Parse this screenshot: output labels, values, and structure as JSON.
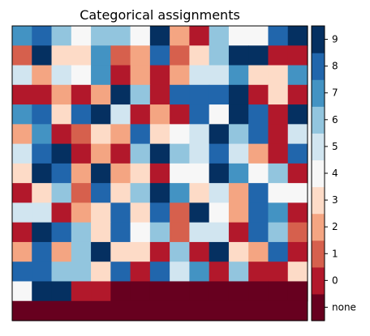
{
  "chart_data": {
    "type": "heatmap",
    "title": "Categorical assignments",
    "rows": 14,
    "cols": 15,
    "category_labels": [
      "none",
      "0",
      "1",
      "2",
      "3",
      "4",
      "5",
      "6",
      "7",
      "8",
      "9"
    ],
    "category_values": [
      -1,
      0,
      1,
      2,
      3,
      4,
      5,
      6,
      7,
      8,
      9
    ],
    "colors": {
      "-1": "#67001f",
      "0": "#b2182b",
      "1": "#d6604d",
      "2": "#f4a582",
      "3": "#fddbc7",
      "4": "#f7f7f7",
      "5": "#d1e5f0",
      "6": "#92c5de",
      "7": "#4393c3",
      "8": "#2166ac",
      "9": "#053061"
    },
    "grid": [
      [
        7,
        8,
        6,
        4,
        6,
        6,
        4,
        9,
        2,
        0,
        6,
        4,
        4,
        8,
        9
      ],
      [
        1,
        9,
        3,
        3,
        7,
        1,
        2,
        8,
        1,
        3,
        6,
        9,
        9,
        0,
        0
      ],
      [
        5,
        2,
        5,
        4,
        7,
        0,
        2,
        0,
        2,
        5,
        5,
        7,
        3,
        3,
        7
      ],
      [
        0,
        0,
        2,
        0,
        2,
        9,
        6,
        0,
        8,
        8,
        8,
        9,
        0,
        3,
        0
      ],
      [
        7,
        8,
        3,
        8,
        9,
        5,
        0,
        2,
        0,
        8,
        4,
        9,
        8,
        0,
        9
      ],
      [
        2,
        7,
        0,
        1,
        3,
        2,
        8,
        3,
        4,
        5,
        9,
        6,
        8,
        0,
        5
      ],
      [
        5,
        8,
        9,
        0,
        2,
        0,
        6,
        9,
        6,
        5,
        8,
        5,
        2,
        0,
        8
      ],
      [
        3,
        9,
        8,
        2,
        9,
        2,
        3,
        0,
        4,
        4,
        9,
        7,
        4,
        6,
        0
      ],
      [
        0,
        3,
        6,
        1,
        8,
        3,
        6,
        9,
        7,
        3,
        5,
        2,
        8,
        4,
        4
      ],
      [
        5,
        5,
        0,
        2,
        3,
        8,
        3,
        8,
        1,
        9,
        4,
        2,
        8,
        7,
        0
      ],
      [
        0,
        9,
        8,
        6,
        3,
        8,
        4,
        6,
        1,
        5,
        5,
        0,
        8,
        6,
        1
      ],
      [
        2,
        8,
        2,
        6,
        9,
        3,
        3,
        0,
        6,
        0,
        9,
        3,
        2,
        8,
        0
      ],
      [
        8,
        8,
        6,
        6,
        3,
        8,
        0,
        8,
        5,
        7,
        0,
        6,
        0,
        0,
        3
      ],
      [
        4,
        9,
        9,
        0,
        0,
        -1,
        -1,
        -1,
        -1,
        -1,
        -1,
        -1,
        -1,
        -1,
        -1
      ]
    ],
    "bottom_fill_value": -1,
    "bottom_fill_rows": 1
  }
}
